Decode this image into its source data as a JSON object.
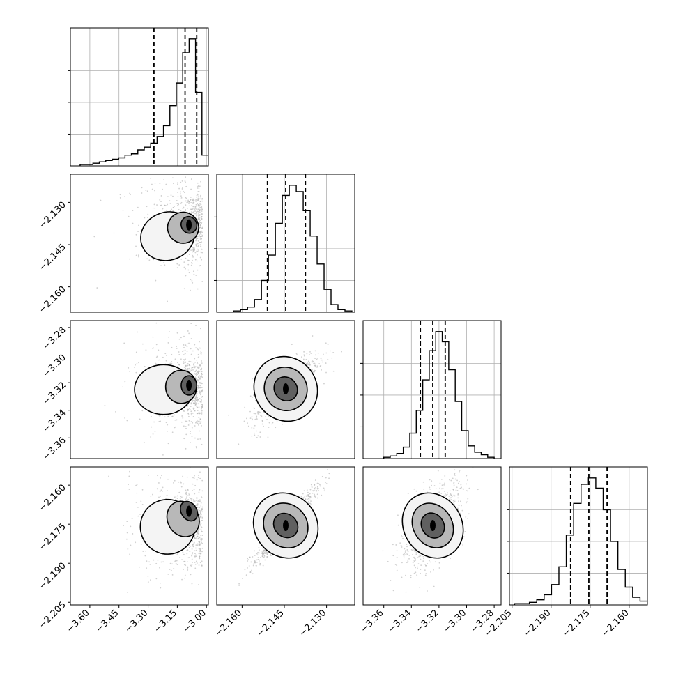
{
  "chart_data": {
    "type": "corner",
    "parameters": 4,
    "axes": [
      {
        "range": [
          -3.7,
          -2.99
        ],
        "ticks": [
          -3.6,
          -3.45,
          -3.3,
          -3.15,
          -3.0
        ],
        "tick_labels": [
          "−3.60",
          "−3.45",
          "−3.30",
          "−3.15",
          "−3.00"
        ]
      },
      {
        "range": [
          -2.169,
          -2.12
        ],
        "ticks": [
          -2.16,
          -2.145,
          -2.13
        ],
        "tick_labels": [
          "−2.160",
          "−2.145",
          "−2.130"
        ]
      },
      {
        "range": [
          -3.375,
          -3.275
        ],
        "ticks": [
          -3.36,
          -3.34,
          -3.32,
          -3.3,
          -3.28
        ],
        "tick_labels": [
          "−3.36",
          "−3.34",
          "−3.32",
          "−3.30",
          "−3.28"
        ]
      },
      {
        "range": [
          -2.206,
          -2.153
        ],
        "ticks": [
          -2.205,
          -2.19,
          -2.175,
          -2.16
        ],
        "tick_labels": [
          "−2.205",
          "−2.190",
          "−2.175",
          "−2.160"
        ]
      }
    ],
    "quantiles": [
      [
        -3.27,
        -3.11,
        -3.05
      ],
      [
        -2.151,
        -2.1445,
        -2.1375
      ],
      [
        -3.3335,
        -3.3245,
        -3.3155
      ],
      [
        -2.1825,
        -2.1755,
        -2.1685
      ]
    ],
    "histograms": [
      {
        "edges_range": [
          -3.65,
          -2.99
        ],
        "counts": [
          1,
          1,
          2,
          3,
          4,
          5,
          6,
          8,
          9,
          12,
          14,
          17,
          22,
          30,
          45,
          62,
          85,
          95,
          55,
          8
        ]
      },
      {
        "edges_range": [
          -2.163,
          -2.121
        ],
        "counts": [
          1,
          2,
          4,
          10,
          25,
          45,
          70,
          92,
          100,
          95,
          80,
          60,
          38,
          18,
          6,
          2,
          1
        ]
      },
      {
        "edges_range": [
          -3.36,
          -3.28
        ],
        "counts": [
          1,
          2,
          4,
          9,
          20,
          38,
          62,
          85,
          100,
          92,
          70,
          45,
          22,
          10,
          5,
          3,
          1
        ]
      },
      {
        "edges_range": [
          -2.204,
          -2.153
        ],
        "counts": [
          1,
          1,
          2,
          4,
          8,
          16,
          30,
          55,
          80,
          95,
          100,
          92,
          75,
          50,
          28,
          14,
          6,
          3
        ]
      }
    ],
    "pairs": [
      {
        "row": 1,
        "col": 0,
        "center": [
          -3.1,
          -2.138
        ],
        "sigma": [
          0.1,
          0.007
        ],
        "rho": 0.45,
        "skew": "left",
        "contours": [
          [
            -3.09,
            -2.138,
            0.04,
            0.003
          ],
          [
            -3.12,
            -2.139,
            0.08,
            0.0055
          ],
          [
            -3.2,
            -2.142,
            0.14,
            0.0085
          ]
        ]
      },
      {
        "row": 2,
        "col": 0,
        "center": [
          -3.1,
          -3.324
        ],
        "sigma": [
          0.1,
          0.015
        ],
        "rho": 0.0,
        "skew": "left",
        "contours": [
          [
            -3.09,
            -3.322,
            0.04,
            0.007
          ],
          [
            -3.13,
            -3.323,
            0.08,
            0.012
          ],
          [
            -3.22,
            -3.325,
            0.15,
            0.018
          ]
        ]
      },
      {
        "row": 2,
        "col": 1,
        "center": [
          -2.1445,
          -3.3245
        ],
        "sigma": [
          0.006,
          0.012
        ],
        "rho": 0.8,
        "skew": "none",
        "contours": [
          [
            -2.1445,
            -3.3245,
            0.004,
            0.009
          ],
          [
            -2.1445,
            -3.3245,
            0.0075,
            0.016
          ],
          [
            -2.1445,
            -3.3245,
            0.011,
            0.024
          ]
        ]
      },
      {
        "row": 3,
        "col": 0,
        "center": [
          -3.1,
          -2.1755
        ],
        "sigma": [
          0.1,
          0.008
        ],
        "rho": 0.5,
        "skew": "left",
        "contours": [
          [
            -3.09,
            -2.17,
            0.04,
            0.004
          ],
          [
            -3.12,
            -2.173,
            0.08,
            0.007
          ],
          [
            -3.2,
            -2.176,
            0.14,
            0.0105
          ]
        ]
      },
      {
        "row": 3,
        "col": 1,
        "center": [
          -2.1445,
          -2.1755
        ],
        "sigma": [
          0.006,
          0.007
        ],
        "rho": 0.95,
        "skew": "none",
        "contours": [
          [
            -2.1445,
            -2.1755,
            0.004,
            0.005
          ],
          [
            -2.1445,
            -2.1755,
            0.0075,
            0.009
          ],
          [
            -2.1445,
            -2.1755,
            0.011,
            0.013
          ]
        ]
      },
      {
        "row": 3,
        "col": 2,
        "center": [
          -3.3245,
          -2.1755
        ],
        "sigma": [
          0.012,
          0.008
        ],
        "rho": 0.6,
        "skew": "none",
        "contours": [
          [
            -3.3245,
            -2.1755,
            0.008,
            0.005
          ],
          [
            -3.3245,
            -2.1755,
            0.014,
            0.009
          ],
          [
            -3.3245,
            -2.1755,
            0.021,
            0.013
          ]
        ]
      }
    ],
    "grid": true,
    "colors": {
      "line": "#000000",
      "scatter": "#b0b0b0",
      "grid": "#b0b0b0"
    }
  }
}
